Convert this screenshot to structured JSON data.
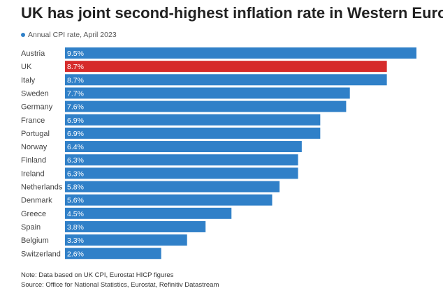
{
  "title": "UK has joint second-highest inflation rate in Western Europe",
  "legend": {
    "label": "Annual CPI rate, April 2023"
  },
  "colors": {
    "default_bar": "#3080c8",
    "highlight_bar": "#d62b2b",
    "label_text": "#ffffff"
  },
  "chart_data": {
    "type": "bar",
    "orientation": "horizontal",
    "categories": [
      "Austria",
      "UK",
      "Italy",
      "Sweden",
      "Germany",
      "France",
      "Portugal",
      "Norway",
      "Finland",
      "Ireland",
      "Netherlands",
      "Denmark",
      "Greece",
      "Spain",
      "Belgium",
      "Switzerland"
    ],
    "values": [
      9.5,
      8.7,
      8.7,
      7.7,
      7.6,
      6.9,
      6.9,
      6.4,
      6.3,
      6.3,
      5.8,
      5.6,
      4.5,
      3.8,
      3.3,
      2.6
    ],
    "value_labels": [
      "9.5%",
      "8.7%",
      "8.7%",
      "7.7%",
      "7.6%",
      "6.9%",
      "6.9%",
      "6.4%",
      "6.3%",
      "6.3%",
      "5.8%",
      "5.6%",
      "4.5%",
      "3.8%",
      "3.3%",
      "2.6%"
    ],
    "highlight": "UK",
    "xlim": [
      0,
      9.5
    ],
    "grid": false
  },
  "notes": {
    "note": "Note: Data based on UK CPI, Eurostat HICP figures",
    "source": "Source: Office for National Statistics, Eurostat, Refinitiv Datastream"
  }
}
